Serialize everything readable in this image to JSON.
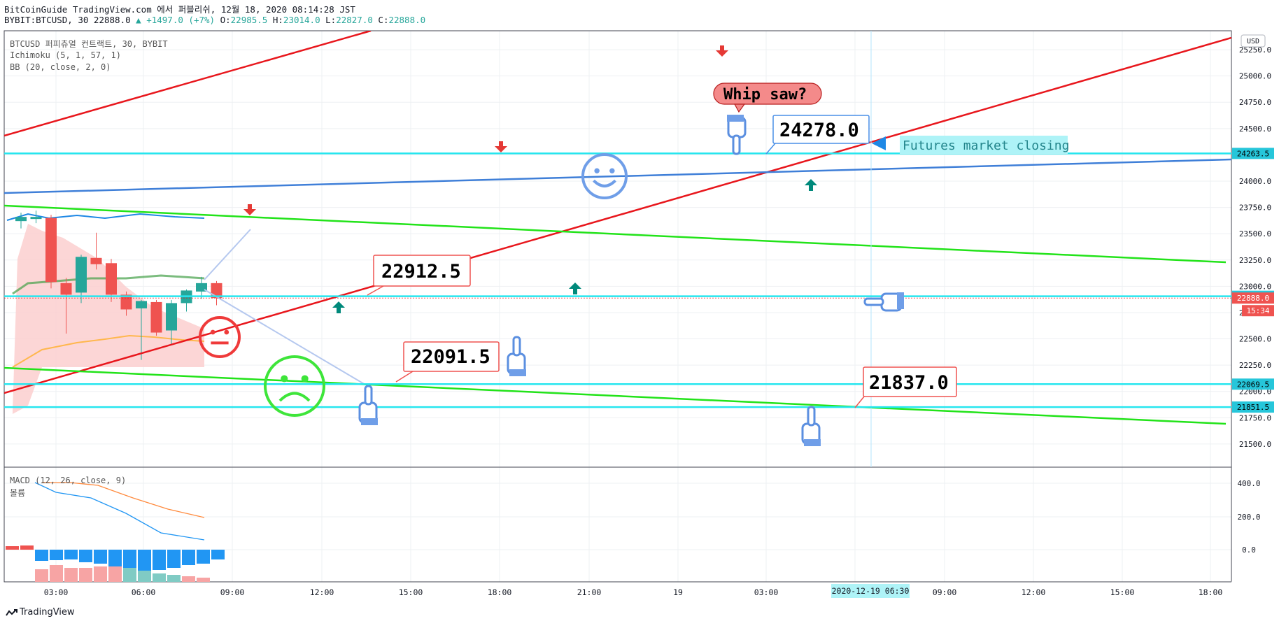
{
  "header": {
    "line1": "BitCoinGuide TradingView.com 에서 퍼블리쉬, 12월 18, 2020 08:14:28 JST",
    "symbol": "BYBIT:BTCUSD, 30 22888.0",
    "change": "▲ +1497.0 (+7%)",
    "o_label": "O:",
    "o_val": "22985.5",
    "h_label": "H:",
    "h_val": "23014.0",
    "l_label": "L:",
    "l_val": "22827.0",
    "c_label": "C:",
    "c_val": "22888.0"
  },
  "overlays": {
    "title": "BTCUSD 퍼피츄얼 컨트랙트, 30, BYBIT",
    "ichimoku": "Ichimoku (5, 1, 57, 1)",
    "bb": "BB (20, close, 2, 0)",
    "macd": "MACD (12, 26, close, 9)",
    "volume": "볼륨"
  },
  "currency": "USD",
  "chart_data": {
    "type": "candlestick",
    "y_range": [
      21280,
      25430
    ],
    "y_ticks": [
      "25250.0",
      "25000.0",
      "24750.0",
      "24500.0",
      "24250.0",
      "24000.0",
      "23750.0",
      "23500.0",
      "23250.0",
      "23000.0",
      "22750.0",
      "22500.0",
      "22250.0",
      "22000.0",
      "21750.0",
      "21500.0"
    ],
    "macd_ticks": [
      "400.0",
      "200.0",
      "0.0"
    ],
    "x_ticks": [
      "03:00",
      "06:00",
      "09:00",
      "12:00",
      "15:00",
      "18:00",
      "21:00",
      "19",
      "03:00",
      "06:00",
      "09:00",
      "12:00",
      "15:00",
      "18:00"
    ],
    "candles": [
      {
        "o": 23620,
        "h": 23700,
        "l": 23550,
        "c": 23660
      },
      {
        "o": 23640,
        "h": 23720,
        "l": 23600,
        "c": 23660
      },
      {
        "o": 23650,
        "h": 23680,
        "l": 22980,
        "c": 23040
      },
      {
        "o": 23030,
        "h": 23080,
        "l": 22550,
        "c": 22920
      },
      {
        "o": 22940,
        "h": 23300,
        "l": 22840,
        "c": 23280
      },
      {
        "o": 23270,
        "h": 23510,
        "l": 23160,
        "c": 23210
      },
      {
        "o": 23220,
        "h": 23260,
        "l": 22850,
        "c": 22920
      },
      {
        "o": 22920,
        "h": 22950,
        "l": 22720,
        "c": 22780
      },
      {
        "o": 22790,
        "h": 22870,
        "l": 22300,
        "c": 22860
      },
      {
        "o": 22850,
        "h": 22870,
        "l": 22530,
        "c": 22560
      },
      {
        "o": 22580,
        "h": 22870,
        "l": 22450,
        "c": 22840
      },
      {
        "o": 22840,
        "h": 22970,
        "l": 22760,
        "c": 22960
      },
      {
        "o": 22950,
        "h": 23090,
        "l": 22880,
        "c": 23030
      },
      {
        "o": 23030,
        "h": 23050,
        "l": 22820,
        "c": 22888
      }
    ],
    "price_labels": [
      {
        "text": "24263.5",
        "value": 24263.5,
        "color": "#26c6da"
      },
      {
        "text": "22905.0",
        "value": 22905.0,
        "color": "#26c6da"
      },
      {
        "text": "22888.0",
        "value": 22888.0,
        "color": "#ef5350"
      },
      {
        "text": "22069.5",
        "value": 22069.5,
        "color": "#26c6da"
      },
      {
        "text": "21851.5",
        "value": 21851.5,
        "color": "#26c6da"
      }
    ],
    "countdown": "15:34",
    "h_lines": [
      24263.5,
      22905.0,
      22069.5,
      21851.5
    ],
    "annotations": {
      "a1": "22912.5",
      "a2": "22091.5",
      "a3": "24278.0",
      "a4": "21837.0",
      "callout": "Whip saw?",
      "note": "Futures market closing"
    },
    "date_label": "2020-12-19   06:30"
  },
  "footer": {
    "brand": "TradingView"
  },
  "colors": {
    "up": "#26a69a",
    "down": "#ef5350",
    "teal_line": "#26e6ef",
    "red_line": "#e8161c",
    "green_line": "#22e319",
    "blue_line": "#3f7fd8"
  }
}
